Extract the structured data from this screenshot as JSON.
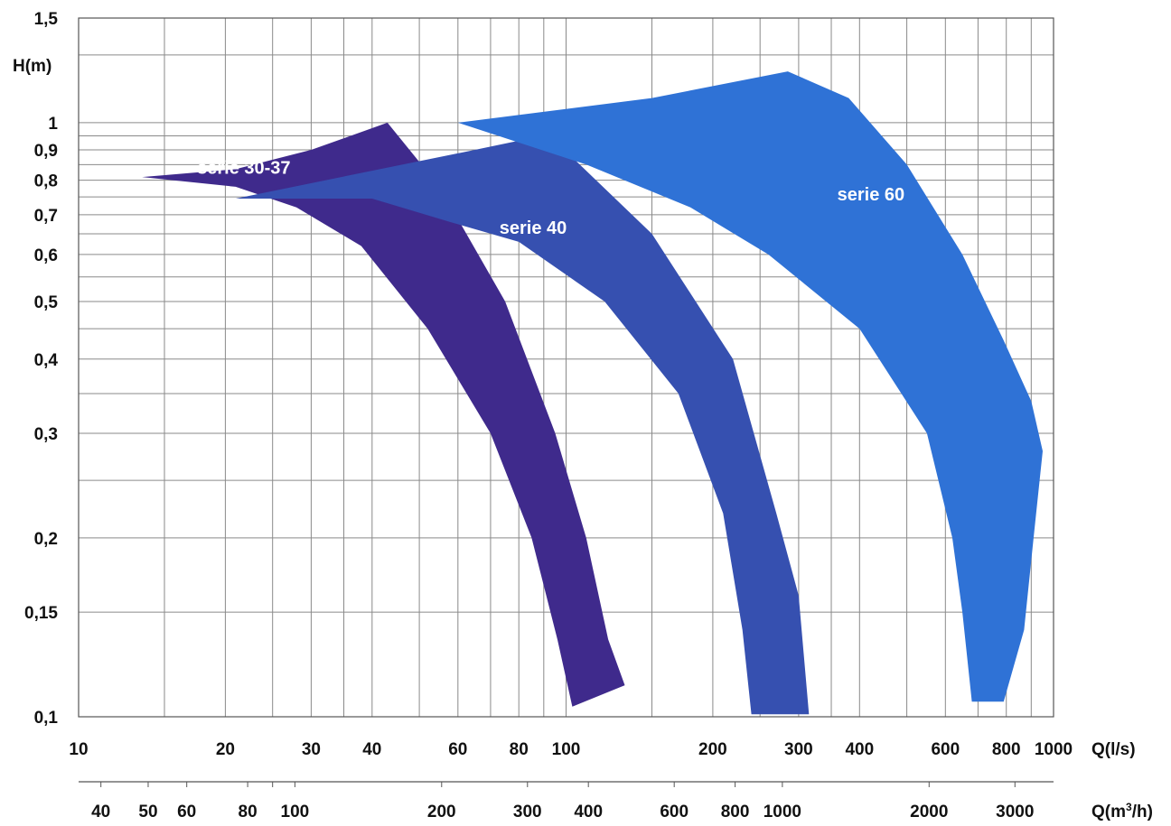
{
  "chart_data": {
    "type": "area",
    "title": "",
    "ylabel": "H(m)",
    "xlabel": "Q(l/s)",
    "x2label_prefix": "Q(m",
    "x2label_sup": "3",
    "x2label_suffix": "/h)",
    "xscale": "log",
    "yscale": "log",
    "xlim": [
      10,
      1000
    ],
    "ylim": [
      0.1,
      1.5
    ],
    "grid": true,
    "y_ticks": [
      {
        "v": 1.5,
        "label": "1,5"
      },
      {
        "v": 1,
        "label": "1"
      },
      {
        "v": 0.9,
        "label": "0,9"
      },
      {
        "v": 0.8,
        "label": "0,8"
      },
      {
        "v": 0.7,
        "label": "0,7"
      },
      {
        "v": 0.6,
        "label": "0,6"
      },
      {
        "v": 0.5,
        "label": "0,5"
      },
      {
        "v": 0.4,
        "label": "0,4"
      },
      {
        "v": 0.3,
        "label": "0,3"
      },
      {
        "v": 0.2,
        "label": "0,2"
      },
      {
        "v": 0.15,
        "label": "0,15"
      },
      {
        "v": 0.1,
        "label": "0,1"
      }
    ],
    "y_grid_extra": [
      1.3,
      0.95,
      0.85,
      0.75,
      0.65,
      0.55,
      0.45,
      0.35,
      0.25
    ],
    "x_ticks": [
      {
        "v": 10,
        "label": "10"
      },
      {
        "v": 20,
        "label": "20"
      },
      {
        "v": 30,
        "label": "30"
      },
      {
        "v": 40,
        "label": "40"
      },
      {
        "v": 60,
        "label": "60"
      },
      {
        "v": 80,
        "label": "80"
      },
      {
        "v": 100,
        "label": "100"
      },
      {
        "v": 200,
        "label": "200"
      },
      {
        "v": 300,
        "label": "300"
      },
      {
        "v": 400,
        "label": "400"
      },
      {
        "v": 600,
        "label": "600"
      },
      {
        "v": 800,
        "label": "800"
      },
      {
        "v": 1000,
        "label": "1000"
      }
    ],
    "x_grid": [
      15,
      20,
      25,
      30,
      35,
      40,
      50,
      60,
      70,
      80,
      90,
      100,
      150,
      200,
      250,
      300,
      350,
      400,
      500,
      600,
      700,
      800,
      900,
      1000
    ],
    "x2_ticks": [
      {
        "v": 40,
        "label": "40"
      },
      {
        "v": 50,
        "label": "50"
      },
      {
        "v": 60,
        "label": "60"
      },
      {
        "v": 80,
        "label": "80"
      },
      {
        "v": 100,
        "label": "100"
      },
      {
        "v": 200,
        "label": "200"
      },
      {
        "v": 300,
        "label": "300"
      },
      {
        "v": 400,
        "label": "400"
      },
      {
        "v": 600,
        "label": "600"
      },
      {
        "v": 800,
        "label": "800"
      },
      {
        "v": 1000,
        "label": "1000"
      },
      {
        "v": 2000,
        "label": "2000"
      },
      {
        "v": 3000,
        "label": "3000"
      }
    ],
    "x2_minor": [
      90
    ],
    "series": [
      {
        "name": "serie 30-37",
        "color": "#3f2a8c",
        "label_at": [
          17.5,
          0.82
        ],
        "polygon": [
          [
            13.5,
            0.81
          ],
          [
            21,
            0.835
          ],
          [
            30,
            0.9
          ],
          [
            43,
            1.0
          ],
          [
            55,
            0.78
          ],
          [
            75,
            0.5
          ],
          [
            95,
            0.3
          ],
          [
            110,
            0.2
          ],
          [
            122,
            0.135
          ],
          [
            132,
            0.113
          ],
          [
            103,
            0.104
          ],
          [
            96,
            0.135
          ],
          [
            85,
            0.2
          ],
          [
            70,
            0.3
          ],
          [
            52,
            0.45
          ],
          [
            38,
            0.62
          ],
          [
            28,
            0.72
          ],
          [
            21,
            0.78
          ]
        ]
      },
      {
        "name": "serie 40",
        "color": "#3650b0",
        "label_at": [
          73,
          0.65
        ],
        "polygon": [
          [
            21,
            0.745
          ],
          [
            40,
            0.83
          ],
          [
            65,
            0.9
          ],
          [
            92,
            0.955
          ],
          [
            150,
            0.65
          ],
          [
            220,
            0.4
          ],
          [
            270,
            0.22
          ],
          [
            300,
            0.16
          ],
          [
            315,
            0.101
          ],
          [
            240,
            0.101
          ],
          [
            230,
            0.14
          ],
          [
            210,
            0.22
          ],
          [
            170,
            0.35
          ],
          [
            120,
            0.5
          ],
          [
            80,
            0.63
          ],
          [
            58,
            0.68
          ],
          [
            40,
            0.745
          ]
        ]
      },
      {
        "name": "serie 60",
        "color": "#2f72d6",
        "label_at": [
          360,
          0.74
        ],
        "polygon": [
          [
            60,
            1.0
          ],
          [
            150,
            1.1
          ],
          [
            285,
            1.22
          ],
          [
            380,
            1.1
          ],
          [
            500,
            0.85
          ],
          [
            650,
            0.6
          ],
          [
            790,
            0.43
          ],
          [
            900,
            0.34
          ],
          [
            950,
            0.28
          ],
          [
            910,
            0.2
          ],
          [
            870,
            0.14
          ],
          [
            790,
            0.106
          ],
          [
            680,
            0.106
          ],
          [
            650,
            0.15
          ],
          [
            620,
            0.2
          ],
          [
            550,
            0.3
          ],
          [
            400,
            0.45
          ],
          [
            260,
            0.6
          ],
          [
            180,
            0.72
          ],
          [
            110,
            0.85
          ]
        ]
      }
    ]
  }
}
